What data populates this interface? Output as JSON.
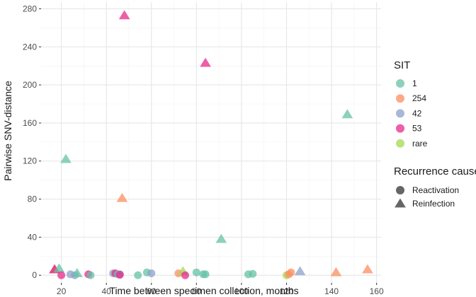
{
  "chart_data": {
    "type": "scatter",
    "title": "",
    "xlabel": "Time between specimen collection, months",
    "ylabel": "Pairwise SNV-distance",
    "xlim": [
      11,
      162
    ],
    "ylim": [
      -8,
      287
    ],
    "x_ticks": [
      20,
      40,
      60,
      80,
      100,
      120,
      140,
      160
    ],
    "y_ticks": [
      0,
      40,
      80,
      120,
      160,
      200,
      240,
      280
    ],
    "x_minor": [
      30,
      50,
      70,
      90,
      110,
      130,
      150
    ],
    "y_minor": [
      20,
      60,
      100,
      140,
      180,
      220,
      260
    ],
    "grid": true,
    "legend_placement": "right",
    "color_legend": {
      "title": "SIT",
      "entries": [
        {
          "label": "1",
          "color": "#66C2A5"
        },
        {
          "label": "254",
          "color": "#FC8D62"
        },
        {
          "label": "42",
          "color": "#8DA0CB"
        },
        {
          "label": "53",
          "color": "#E7298A"
        },
        {
          "label": "rare",
          "color": "#A6D854"
        }
      ]
    },
    "shape_legend": {
      "title": "Recurrence cause",
      "entries": [
        {
          "label": "Reactivation",
          "shape": "circle"
        },
        {
          "label": "Reinfection",
          "shape": "triangle"
        }
      ]
    },
    "points": [
      {
        "x": 17,
        "y": 6,
        "sit": "1",
        "cause": "Reinfection"
      },
      {
        "x": 17,
        "y": 6,
        "sit": "254",
        "cause": "Reinfection"
      },
      {
        "x": 17,
        "y": 6,
        "sit": "53",
        "cause": "Reinfection"
      },
      {
        "x": 19,
        "y": 7,
        "sit": "1",
        "cause": "Reinfection"
      },
      {
        "x": 20,
        "y": 0,
        "sit": "53",
        "cause": "Reactivation"
      },
      {
        "x": 22,
        "y": 122,
        "sit": "1",
        "cause": "Reinfection"
      },
      {
        "x": 24,
        "y": 1,
        "sit": "42",
        "cause": "Reactivation"
      },
      {
        "x": 26,
        "y": 0,
        "sit": "42",
        "cause": "Reactivation"
      },
      {
        "x": 27,
        "y": 2,
        "sit": "1",
        "cause": "Reinfection"
      },
      {
        "x": 32,
        "y": 1,
        "sit": "53",
        "cause": "Reactivation"
      },
      {
        "x": 33,
        "y": 0,
        "sit": "1",
        "cause": "Reactivation"
      },
      {
        "x": 43,
        "y": 2,
        "sit": "42",
        "cause": "Reactivation"
      },
      {
        "x": 44,
        "y": 2,
        "sit": "53",
        "cause": "Reactivation"
      },
      {
        "x": 45,
        "y": 1,
        "sit": "1",
        "cause": "Reactivation"
      },
      {
        "x": 46,
        "y": 1,
        "sit": "42",
        "cause": "Reactivation"
      },
      {
        "x": 46,
        "y": 0.5,
        "sit": "53",
        "cause": "Reactivation"
      },
      {
        "x": 47,
        "y": 81,
        "sit": "254",
        "cause": "Reinfection"
      },
      {
        "x": 48,
        "y": 273,
        "sit": "53",
        "cause": "Reinfection"
      },
      {
        "x": 54,
        "y": 0,
        "sit": "1",
        "cause": "Reactivation"
      },
      {
        "x": 58,
        "y": 3,
        "sit": "1",
        "cause": "Reactivation"
      },
      {
        "x": 60,
        "y": 2,
        "sit": "42",
        "cause": "Reactivation"
      },
      {
        "x": 72,
        "y": 2,
        "sit": "254",
        "cause": "Reactivation"
      },
      {
        "x": 74,
        "y": 4,
        "sit": "rare",
        "cause": "Reinfection"
      },
      {
        "x": 75,
        "y": 0,
        "sit": "53",
        "cause": "Reactivation"
      },
      {
        "x": 80,
        "y": 3,
        "sit": "1",
        "cause": "Reactivation"
      },
      {
        "x": 83,
        "y": 1,
        "sit": "1",
        "cause": "Reactivation"
      },
      {
        "x": 84,
        "y": 1,
        "sit": "1",
        "cause": "Reactivation"
      },
      {
        "x": 84,
        "y": 223,
        "sit": "53",
        "cause": "Reinfection"
      },
      {
        "x": 91,
        "y": 38,
        "sit": "1",
        "cause": "Reinfection"
      },
      {
        "x": 103,
        "y": 1,
        "sit": "1",
        "cause": "Reactivation"
      },
      {
        "x": 105,
        "y": 1.5,
        "sit": "1",
        "cause": "Reactivation"
      },
      {
        "x": 120,
        "y": 0,
        "sit": "rare",
        "cause": "Reactivation"
      },
      {
        "x": 121,
        "y": 1,
        "sit": "254",
        "cause": "Reactivation"
      },
      {
        "x": 122,
        "y": 3,
        "sit": "254",
        "cause": "Reactivation"
      },
      {
        "x": 126,
        "y": 4,
        "sit": "42",
        "cause": "Reinfection"
      },
      {
        "x": 142,
        "y": 3,
        "sit": "254",
        "cause": "Reinfection"
      },
      {
        "x": 147,
        "y": 169,
        "sit": "1",
        "cause": "Reinfection"
      },
      {
        "x": 156,
        "y": 6,
        "sit": "254",
        "cause": "Reinfection"
      }
    ]
  }
}
